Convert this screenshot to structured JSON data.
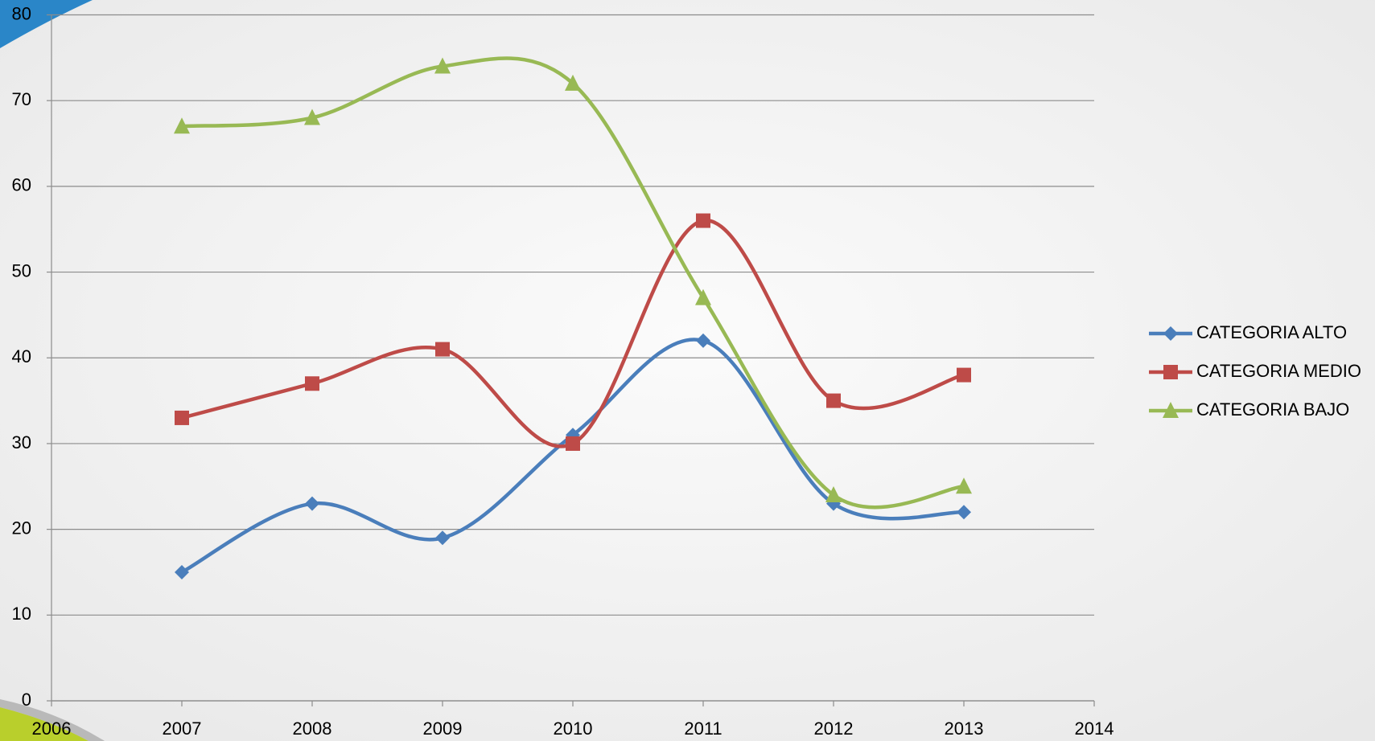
{
  "chart_data": {
    "type": "line",
    "x": [
      2007,
      2008,
      2009,
      2010,
      2011,
      2012,
      2013
    ],
    "series": [
      {
        "name": "CATEGORIA ALTO",
        "color": "#4a7ebb",
        "marker": "diamond",
        "values": [
          15,
          23,
          19,
          31,
          42,
          23,
          22
        ]
      },
      {
        "name": "CATEGORIA MEDIO",
        "color": "#be4b48",
        "marker": "square",
        "values": [
          33,
          37,
          41,
          30,
          56,
          35,
          38
        ]
      },
      {
        "name": "CATEGORIA BAJO",
        "color": "#98b954",
        "marker": "triangle",
        "values": [
          67,
          68,
          74,
          72,
          47,
          24,
          25
        ]
      }
    ],
    "xlim": [
      2006,
      2014
    ],
    "xticks": [
      2006,
      2007,
      2008,
      2009,
      2010,
      2011,
      2012,
      2013,
      2014
    ],
    "ylim": [
      0,
      80
    ],
    "yticks": [
      0,
      10,
      20,
      30,
      40,
      50,
      60,
      70,
      80
    ],
    "grid": true,
    "smooth": true,
    "legend": "right"
  }
}
